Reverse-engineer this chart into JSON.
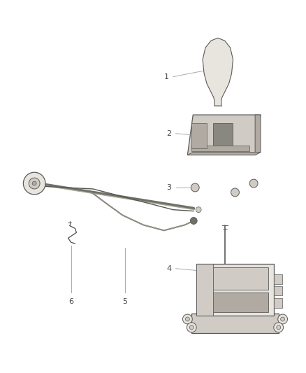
{
  "bg_color": "#ffffff",
  "lc": "#5a5a5a",
  "lc_light": "#8a8a8a",
  "fill_light": "#e8e4de",
  "fill_mid": "#d0cbc4",
  "fill_dark": "#b0aaa2",
  "label_color": "#444444",
  "leader_color": "#aaaaaa",
  "fig_width": 4.38,
  "fig_height": 5.33
}
